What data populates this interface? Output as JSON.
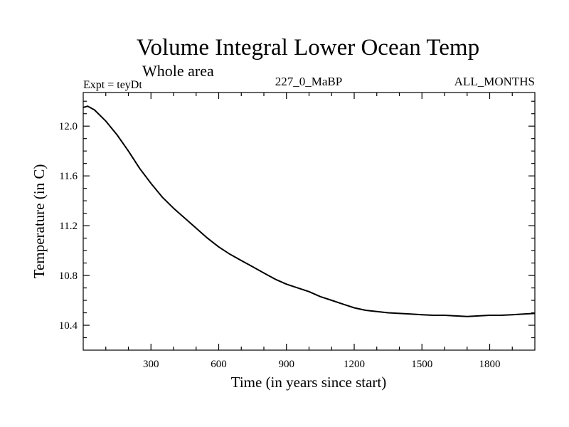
{
  "chart_data": {
    "type": "line",
    "title": "Volume Integral Lower Ocean Temp",
    "subtitle": "Whole area",
    "left_label": "Expt = teyDt",
    "center_label": "227_0_MaBP",
    "right_label": "ALL_MONTHS",
    "xlabel": "Time (in years since start)",
    "ylabel": "Temperature (in C)",
    "xlim": [
      0,
      2000
    ],
    "ylim": [
      10.2,
      12.27
    ],
    "xticks": [
      300,
      600,
      900,
      1200,
      1500,
      1800
    ],
    "xtick_labels": [
      "300",
      "600",
      "900",
      "1200",
      "1500",
      "1800"
    ],
    "yticks": [
      10.4,
      10.8,
      11.2,
      11.6,
      12.0
    ],
    "ytick_labels": [
      "10.4",
      "10.8",
      "11.2",
      "11.6",
      "12.0"
    ],
    "series": [
      {
        "name": "Volume Integral Lower Ocean Temp",
        "color": "#000000",
        "x": [
          0,
          20,
          50,
          100,
          150,
          200,
          250,
          300,
          350,
          400,
          450,
          500,
          550,
          600,
          650,
          700,
          750,
          800,
          850,
          900,
          950,
          1000,
          1050,
          1100,
          1150,
          1200,
          1250,
          1300,
          1350,
          1400,
          1450,
          1500,
          1550,
          1600,
          1650,
          1700,
          1750,
          1800,
          1850,
          1900,
          1950,
          2000
        ],
        "y": [
          12.15,
          12.16,
          12.13,
          12.04,
          11.93,
          11.8,
          11.66,
          11.54,
          11.43,
          11.34,
          11.26,
          11.18,
          11.1,
          11.03,
          10.97,
          10.92,
          10.87,
          10.82,
          10.77,
          10.73,
          10.7,
          10.67,
          10.63,
          10.6,
          10.57,
          10.54,
          10.52,
          10.51,
          10.5,
          10.495,
          10.49,
          10.485,
          10.48,
          10.48,
          10.475,
          10.47,
          10.475,
          10.48,
          10.48,
          10.485,
          10.49,
          10.495
        ]
      }
    ]
  }
}
